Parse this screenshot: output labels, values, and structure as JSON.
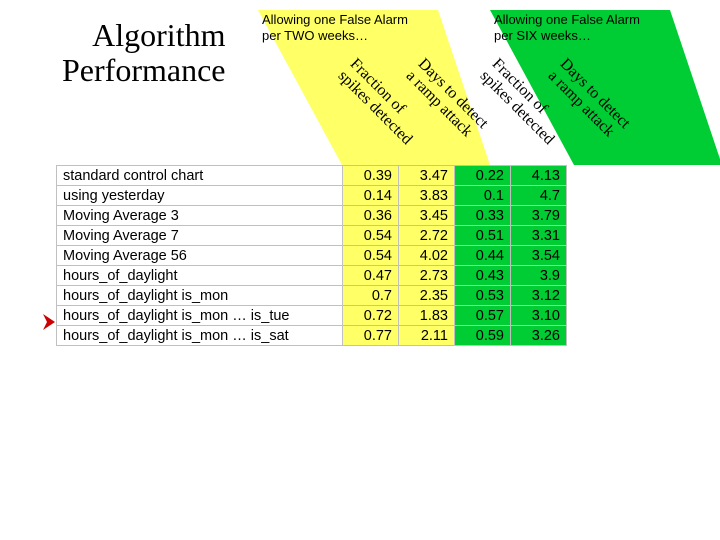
{
  "title_line1": "Algorithm",
  "title_line2": "Performance",
  "group_two": {
    "label_line1": "Allowing one False Alarm",
    "label_line2": "per TWO weeks…",
    "sub1_l1": "Fraction of",
    "sub1_l2": "spikes detected",
    "sub2_l1": "Days to detect",
    "sub2_l2": "a ramp attack",
    "bg_color": "#ffff66"
  },
  "group_six": {
    "label_line1": "Allowing one False Alarm",
    "label_line2": "per SIX weeks…",
    "sub1_l1": "Fraction of",
    "sub1_l2": "spikes detected",
    "sub2_l1": "Days to detect",
    "sub2_l2": "a ramp attack",
    "bg_color": "#00cc33"
  },
  "columns": {
    "name_width": 286,
    "val_width": 56
  },
  "colors": {
    "border": "#c0c0c0",
    "marker": "#cc0000",
    "text": "#000000",
    "bg": "#ffffff"
  },
  "rows": [
    {
      "name": "standard control chart",
      "two_a": "0.39",
      "two_b": "3.47",
      "six_a": "0.22",
      "six_b": "4.13"
    },
    {
      "name": "using yesterday",
      "two_a": "0.14",
      "two_b": "3.83",
      "six_a": "0.1",
      "six_b": "4.7"
    },
    {
      "name": "Moving Average 3",
      "two_a": "0.36",
      "two_b": "3.45",
      "six_a": "0.33",
      "six_b": "3.79"
    },
    {
      "name": "Moving Average 7",
      "two_a": "0.54",
      "two_b": "2.72",
      "six_a": "0.51",
      "six_b": "3.31"
    },
    {
      "name": "Moving Average 56",
      "two_a": "0.54",
      "two_b": "4.02",
      "six_a": "0.44",
      "six_b": "3.54"
    },
    {
      "name": "hours_of_daylight",
      "two_a": "0.47",
      "two_b": "2.73",
      "six_a": "0.43",
      "six_b": "3.9"
    },
    {
      "name": "hours_of_daylight is_mon",
      "two_a": "0.7",
      "two_b": "2.35",
      "six_a": "0.53",
      "six_b": "3.12"
    },
    {
      "name": "hours_of_daylight is_mon … is_tue",
      "two_a": "0.72",
      "two_b": "1.83",
      "six_a": "0.57",
      "six_b": "3.10"
    },
    {
      "name": "hours_of_daylight is_mon … is_sat",
      "two_a": "0.77",
      "two_b": "2.11",
      "six_a": "0.59",
      "six_b": "3.26"
    }
  ],
  "marker_row_index": 7
}
